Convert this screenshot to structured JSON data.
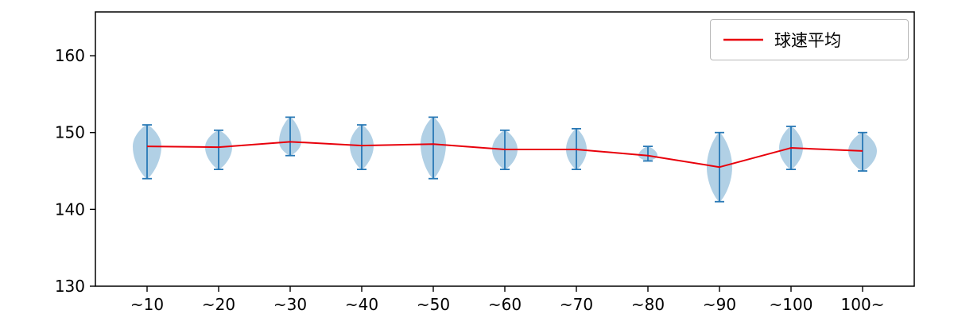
{
  "chart_data": {
    "type": "violin",
    "title": "",
    "xlabel": "",
    "ylabel": "",
    "ylim": [
      130,
      165.7
    ],
    "yticks": [
      130,
      140,
      150,
      160
    ],
    "categories": [
      "~10",
      "~20",
      "~30",
      "~40",
      "~50",
      "~60",
      "~70",
      "~80",
      "~90",
      "~100",
      "100~"
    ],
    "violins": [
      {
        "category": "~10",
        "min": 144.0,
        "max": 151.0,
        "mean": 148.2,
        "rel_width": 0.9
      },
      {
        "category": "~20",
        "min": 145.2,
        "max": 150.3,
        "mean": 148.1,
        "rel_width": 0.85
      },
      {
        "category": "~30",
        "min": 147.0,
        "max": 152.0,
        "mean": 148.8,
        "rel_width": 0.7
      },
      {
        "category": "~40",
        "min": 145.2,
        "max": 151.0,
        "mean": 148.3,
        "rel_width": 0.75
      },
      {
        "category": "~50",
        "min": 144.0,
        "max": 152.0,
        "mean": 148.5,
        "rel_width": 0.8
      },
      {
        "category": "~60",
        "min": 145.2,
        "max": 150.3,
        "mean": 147.8,
        "rel_width": 0.8
      },
      {
        "category": "~70",
        "min": 145.2,
        "max": 150.5,
        "mean": 147.8,
        "rel_width": 0.65
      },
      {
        "category": "~80",
        "min": 146.3,
        "max": 148.2,
        "mean": 147.0,
        "rel_width": 0.6
      },
      {
        "category": "~90",
        "min": 141.0,
        "max": 150.0,
        "mean": 145.5,
        "rel_width": 0.8
      },
      {
        "category": "~100",
        "min": 145.2,
        "max": 150.8,
        "mean": 148.0,
        "rel_width": 0.75
      },
      {
        "category": "100~",
        "min": 145.0,
        "max": 150.0,
        "mean": 147.6,
        "rel_width": 0.9
      }
    ],
    "series": [
      {
        "name": "球速平均",
        "values": [
          148.2,
          148.1,
          148.8,
          148.3,
          148.5,
          147.8,
          147.8,
          147.0,
          145.5,
          148.0,
          147.6
        ]
      }
    ],
    "legend": {
      "label": "球速平均",
      "position": "upper right"
    },
    "grid": false,
    "colors": {
      "violin_fill": "#1f77b4",
      "violin_fill_opacity": "0.35",
      "whisker": "#2878b5",
      "mean_line": "#e8000b",
      "axis": "#000000"
    }
  }
}
